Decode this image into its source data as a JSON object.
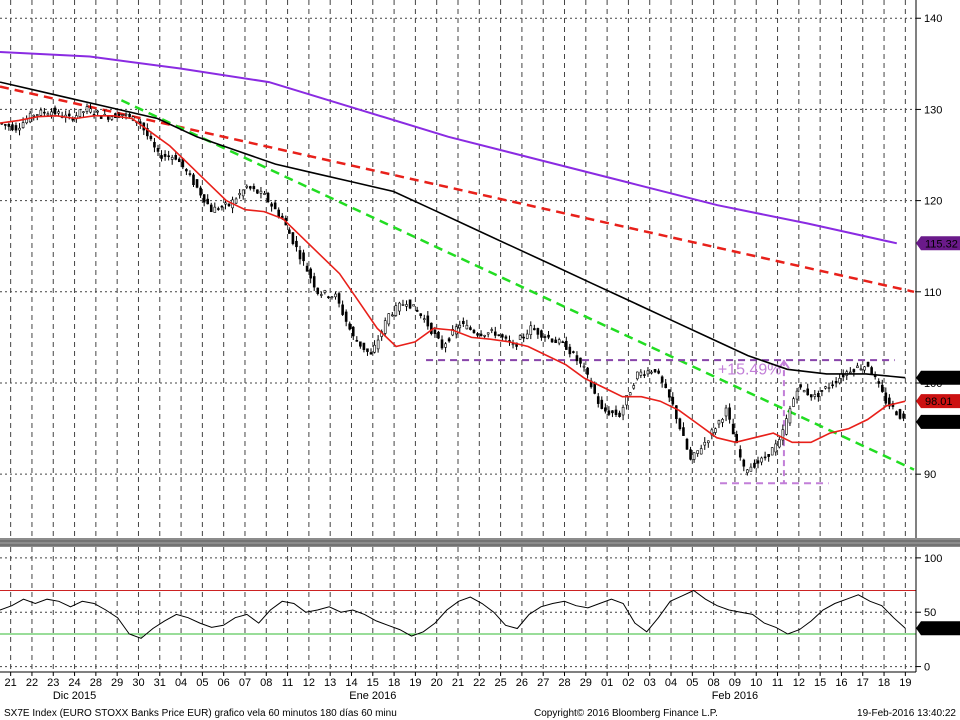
{
  "chart_data": [
    {
      "type": "line",
      "title": "",
      "ylim": [
        83,
        142
      ],
      "y_ticks": [
        140,
        130,
        120,
        110,
        100,
        90
      ],
      "grid": true,
      "series": [
        {
          "role": "price",
          "style": "candlestick",
          "color": "#000000",
          "values": [
            128.5,
            128.0,
            129.5,
            129.8,
            129.0,
            130.0,
            129.2,
            129.5,
            128.5,
            125.0,
            124.8,
            122.0,
            119.0,
            119.5,
            121.5,
            120.5,
            118.0,
            114.0,
            110.0,
            109.5,
            105.0,
            103.0,
            107.5,
            109.0,
            107.0,
            104.0,
            106.5,
            105.5,
            105.5,
            104.0,
            106.0,
            105.0,
            104.0,
            101.5,
            97.0,
            96.5,
            101.0,
            101.5,
            97.5,
            91.5,
            94.0,
            97.0,
            90.5,
            91.5,
            93.5,
            99.5,
            98.5,
            100.0,
            101.5,
            102.0,
            98.0,
            96.0
          ]
        },
        {
          "role": "moving-average-red",
          "color": "#e8201a",
          "values": [
            128.5,
            128.8,
            129.2,
            129.3,
            129.0,
            129.3,
            129.3,
            129.0,
            127.5,
            126.0,
            124.0,
            122.0,
            120.0,
            119.0,
            118.8,
            118.0,
            116.0,
            114.0,
            112.0,
            109.0,
            106.0,
            104.0,
            104.5,
            106.0,
            105.8,
            105.0,
            104.8,
            104.5,
            104.0,
            103.0,
            102.0,
            100.5,
            99.5,
            98.5,
            98.5,
            98.0,
            97.0,
            95.5,
            94.0,
            93.5,
            94.0,
            94.5,
            93.5,
            93.5,
            94.5,
            95.0,
            96.0,
            97.5,
            98.0
          ]
        },
        {
          "role": "moving-average-black",
          "color": "#000000",
          "values": [
            133.0,
            132.0,
            131.0,
            130.0,
            129.0,
            127.0,
            125.5,
            124.0,
            123.0,
            122.0,
            121.0,
            119.0,
            117.0,
            115.0,
            113.0,
            111.0,
            109.0,
            107.0,
            105.0,
            103.0,
            101.5,
            101.0,
            101.0,
            100.58
          ]
        },
        {
          "role": "moving-average-purple",
          "color": "#8a2be2",
          "values": [
            136.3,
            135.8,
            134.5,
            133.0,
            130.0,
            127.0,
            124.5,
            122.0,
            119.5,
            117.5,
            115.32
          ]
        },
        {
          "role": "trendline-red-dashed",
          "color": "#e8201a",
          "values": [
            132.5,
            110.0
          ]
        },
        {
          "role": "trendline-green-dashed",
          "color": "#22dd22",
          "values": [
            131.0,
            90.5
          ]
        },
        {
          "role": "level-purple-dashed",
          "color": "#8844aa",
          "values": [
            102.5,
            89.0
          ]
        }
      ],
      "annotations": [
        {
          "text": "+15.49%",
          "color": "#c27fd8",
          "y": 101.5
        }
      ],
      "last_value_labels": [
        {
          "text": "115.32",
          "value": 115.32,
          "bg": "#6a1a8a",
          "fg": "#ffffff"
        },
        {
          "text": "100.58",
          "value": 100.58,
          "bg": "#000000",
          "fg": "#ffffff"
        },
        {
          "text": "98.01",
          "value": 98.01,
          "bg": "#cc1111",
          "fg": "#ffffff"
        },
        {
          "text": "95.74",
          "value": 95.74,
          "bg": "#000000",
          "fg": "#ffffff"
        }
      ]
    },
    {
      "type": "line",
      "ylim": [
        -5,
        110
      ],
      "y_ticks": [
        100,
        50,
        0
      ],
      "grid": true,
      "upper_band": 70,
      "lower_band": 30,
      "band_colors": {
        "upper": "#cc2222",
        "lower": "#33bb33",
        "fill": "#a8e6a8"
      },
      "series": [
        {
          "role": "oscillator",
          "color": "#000000",
          "values": [
            52,
            56,
            62,
            58,
            62,
            60,
            55,
            60,
            58,
            52,
            45,
            30,
            26,
            35,
            42,
            48,
            45,
            40,
            36,
            38,
            45,
            48,
            40,
            52,
            60,
            58,
            50,
            52,
            55,
            50,
            52,
            48,
            42,
            38,
            34,
            28,
            32,
            40,
            52,
            60,
            64,
            58,
            50,
            38,
            35,
            48,
            55,
            58,
            60,
            56,
            54,
            58,
            62,
            58,
            40,
            32,
            45,
            60,
            65,
            70,
            62,
            56,
            52,
            50,
            48,
            40,
            36,
            30,
            34,
            42,
            52,
            58,
            62,
            66,
            60,
            56,
            45,
            35.28
          ]
        }
      ],
      "last_value_labels": [
        {
          "text": "35.2765",
          "value": 35.2765,
          "bg": "#000000",
          "fg": "#ffffff"
        }
      ]
    }
  ],
  "x_axis": {
    "day_labels": [
      "21",
      "22",
      "23",
      "24",
      "28",
      "29",
      "30",
      "31",
      "04",
      "05",
      "06",
      "07",
      "08",
      "11",
      "12",
      "13",
      "14",
      "15",
      "18",
      "19",
      "20",
      "21",
      "22",
      "25",
      "26",
      "27",
      "28",
      "29",
      "01",
      "02",
      "03",
      "04",
      "05",
      "08",
      "09",
      "10",
      "11",
      "12",
      "15",
      "16",
      "17",
      "18",
      "19"
    ],
    "month_labels": [
      "Dic 2015",
      "Ene 2016",
      "Feb 2016"
    ]
  },
  "footer": {
    "left": "SX7E Index (EURO STOXX Banks Price EUR) grafico vela 60 minutos 180 días 60 minu",
    "center": "Copyright© 2016 Bloomberg Finance L.P.",
    "right": "19-Feb-2016 13:40:22"
  }
}
